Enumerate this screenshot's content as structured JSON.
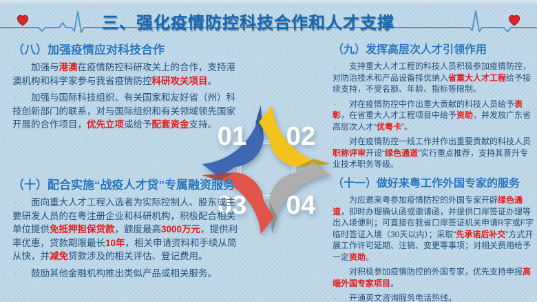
{
  "header": {
    "title": "三、强化疫情防控科技合作和人才支撑"
  },
  "colors": {
    "background": "#bfd8e8",
    "title": "#1566ae",
    "heading": "#2577be",
    "body": "#23507c",
    "highlight": "#e21b1b",
    "line": "#4e96c9",
    "heart": "#d7282f",
    "ring": "#c4cfd9"
  },
  "diagram": {
    "items": [
      {
        "number": "01",
        "color": "#4068b2",
        "shade": "#2d4b85"
      },
      {
        "number": "02",
        "color": "#f2c21d",
        "shade": "#c69a10"
      },
      {
        "number": "03",
        "color": "#e0544a",
        "shade": "#b03a32"
      },
      {
        "number": "04",
        "color": "#aeaeae",
        "shade": "#8b8b8b"
      }
    ]
  },
  "sections": [
    {
      "heading": "（八）加强疫情应对科技合作",
      "paragraphs": [
        [
          {
            "t": "加强与"
          },
          {
            "t": "港澳",
            "h": true
          },
          {
            "t": "在疫情防控科研攻关上的合作，支持港澳机构和科学家参与我省疫情防控"
          },
          {
            "t": "科研攻关项目",
            "h": true
          },
          {
            "t": "。"
          }
        ],
        [
          {
            "t": "加强与国际科技组织、有关国家和友好省（州）科技创新部门的联系，对与国际组织和有关领域领先国家开展的合作项目，"
          },
          {
            "t": "优先立项",
            "h": true
          },
          {
            "t": "或给予"
          },
          {
            "t": "配套资金",
            "h": true
          },
          {
            "t": "支持。"
          }
        ]
      ]
    },
    {
      "heading": "（九）发挥高层次人才引领作用",
      "paragraphs": [
        [
          {
            "t": "支持重大人才工程的科技人员积极参加疫情防控，对防治技术和产品设备择优纳入"
          },
          {
            "t": "省重大人才工程",
            "h": true
          },
          {
            "t": "给予接续支持，不受名额、年龄、指标等限制。"
          }
        ],
        [
          {
            "t": "对在疫情防控中作出重大贡献的科技人员给予"
          },
          {
            "t": "表彰",
            "h": true
          },
          {
            "t": "，在省重大人才工程项目中给予"
          },
          {
            "t": "资助",
            "h": true
          },
          {
            "t": "，并发放广东省高层次人才“"
          },
          {
            "t": "优粤卡",
            "h": true
          },
          {
            "t": "”。"
          }
        ],
        [
          {
            "t": "对在疫情防控一线工作并作出重要贡献的科技人员"
          },
          {
            "t": "职称评审",
            "h": true
          },
          {
            "t": "开设“"
          },
          {
            "t": "绿色通道",
            "h": true
          },
          {
            "t": "”实行重点推荐，支持其晋升专业技术职务等级。"
          }
        ]
      ]
    },
    {
      "heading": "（十）配合实施“战疫人才贷”专属融资服务",
      "paragraphs": [
        [
          {
            "t": "面向重大人才工程入选者为实际控制人、股东或主要研发人员的在粤注册企业和科研机构，积极配合相关单位提供"
          },
          {
            "t": "免抵押担保贷款",
            "h": true
          },
          {
            "t": "，额度最高"
          },
          {
            "t": "3000万元",
            "h": true
          },
          {
            "t": "，提供利率优惠，贷款期限最长"
          },
          {
            "t": "10年",
            "h": true
          },
          {
            "t": "，相关申请资料和手续从简从快，并"
          },
          {
            "t": "减免",
            "h": true
          },
          {
            "t": "贷款涉及的相关评估、登记费用。"
          }
        ],
        [
          {
            "t": "鼓励其他金融机构推出类似产品或相关服务。"
          }
        ]
      ]
    },
    {
      "heading": "（十一）做好来粤工作外国专家的服务",
      "paragraphs": [
        [
          {
            "t": "为应邀来粤参加疫情防控的外国专家开辟"
          },
          {
            "t": "绿色通道",
            "h": true
          },
          {
            "t": "，即时办理确认函或邀请函，并提供口岸签证办理等出入境便利；可直接在我省口岸签证机关申请R字或F字临时签证入境（30天以内）；采取“"
          },
          {
            "t": "先承诺后补交",
            "h": true
          },
          {
            "t": "”方式开展工作许可延期、注销、变更等事项；对相关费用给予一定"
          },
          {
            "t": "资助",
            "h": true
          },
          {
            "t": "。"
          }
        ],
        [
          {
            "t": "对积极参加疫情防控的外国专家，优先支持申报"
          },
          {
            "t": "高端外国专家项目",
            "h": true
          },
          {
            "t": "。"
          }
        ],
        [
          {
            "t": "开通英文咨询服务电话热线。"
          }
        ]
      ]
    }
  ]
}
